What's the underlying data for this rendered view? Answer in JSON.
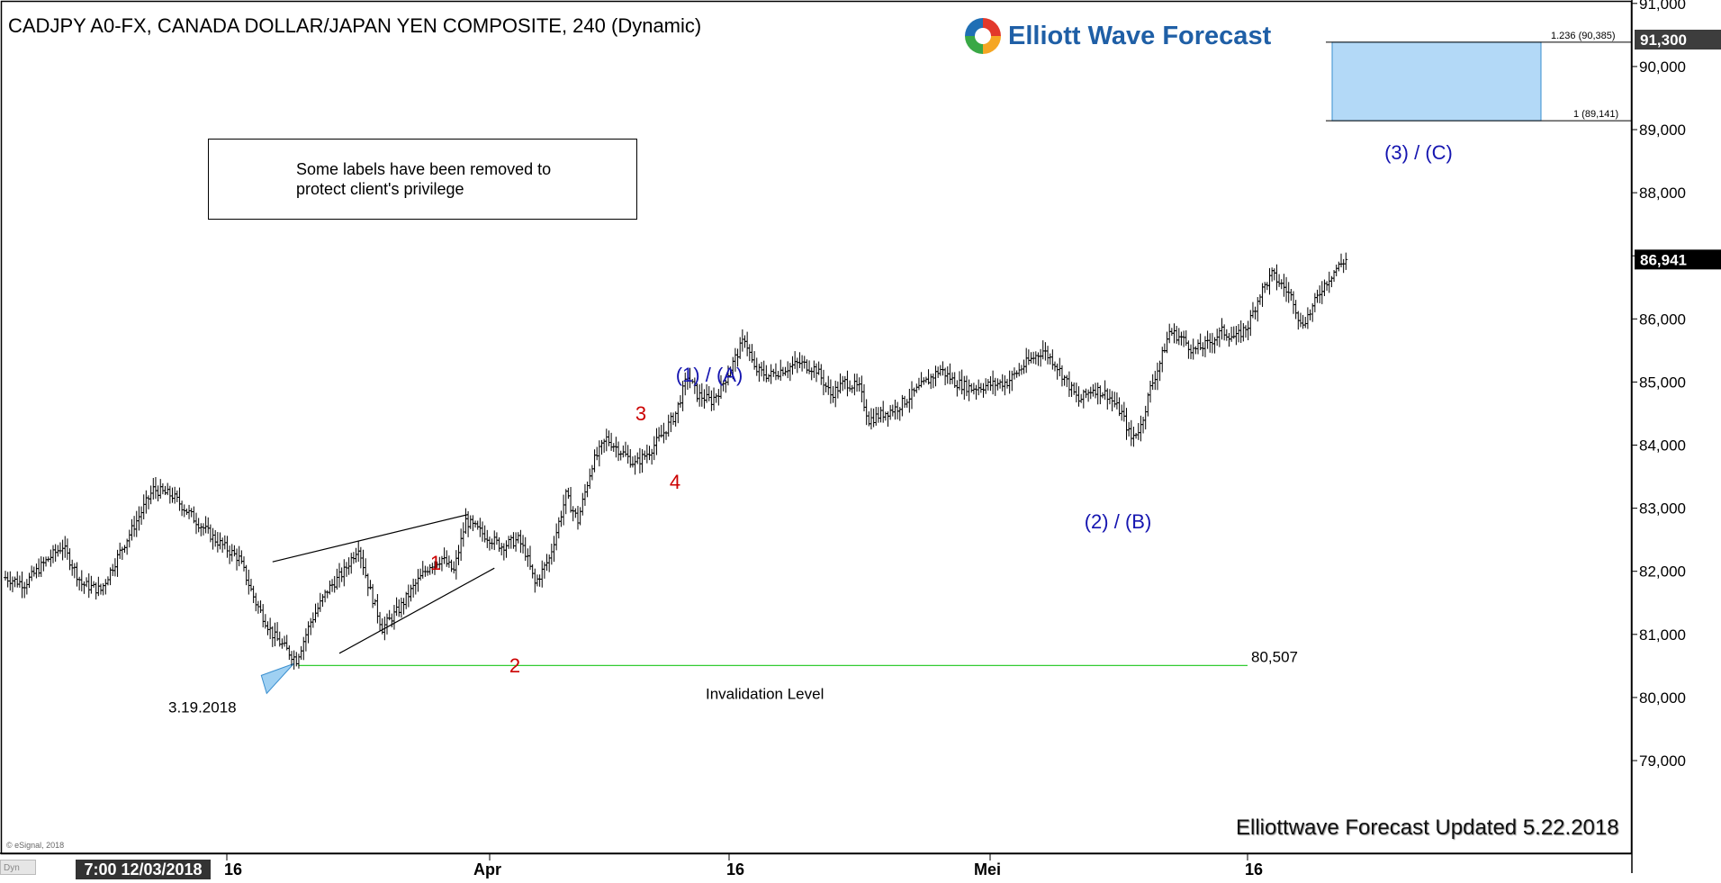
{
  "header": {
    "title": "CADJPY A0-FX, CANADA DOLLAR/JAPAN YEN COMPOSITE, 240 (Dynamic)",
    "logo_text": "Elliott Wave Forecast"
  },
  "note": {
    "text": "Some labels have been removed to\nprotect client's privilege"
  },
  "footer": {
    "dyn_label": "Dyn",
    "time_badge": "7:00 12/03/2018",
    "copyright": "© eSignal, 2018",
    "updated": "Elliottwave Forecast Updated 5.22.2018"
  },
  "chart_data": {
    "type": "ohlc",
    "symbol": "CADJPY",
    "timeframe": "240",
    "ylim": [
      78500,
      91800
    ],
    "y_ticks": [
      "79,000",
      "80,000",
      "81,000",
      "82,000",
      "83,000",
      "84,000",
      "85,000",
      "86,000",
      "87,000",
      "88,000",
      "89,000",
      "90,000",
      "91,000"
    ],
    "x_tick_labels": [
      "16",
      "Apr",
      "16",
      "Mei",
      "16"
    ],
    "price_flags": {
      "top": "91,300",
      "last": "86,941"
    },
    "price_flag_values": {
      "top": 91300,
      "last": 86941
    },
    "price_anchors": [
      [
        0,
        81900
      ],
      [
        8,
        81800
      ],
      [
        18,
        82200
      ],
      [
        24,
        82400
      ],
      [
        32,
        81800
      ],
      [
        40,
        81700
      ],
      [
        48,
        82300
      ],
      [
        55,
        82800
      ],
      [
        62,
        83300
      ],
      [
        70,
        83200
      ],
      [
        75,
        83000
      ],
      [
        80,
        82800
      ],
      [
        88,
        82500
      ],
      [
        98,
        82200
      ],
      [
        105,
        81500
      ],
      [
        112,
        81000
      ],
      [
        118,
        80750
      ],
      [
        122,
        80600
      ],
      [
        128,
        81200
      ],
      [
        135,
        81700
      ],
      [
        142,
        82000
      ],
      [
        148,
        82400
      ],
      [
        152,
        81800
      ],
      [
        158,
        81100
      ],
      [
        165,
        81400
      ],
      [
        172,
        81800
      ],
      [
        178,
        82100
      ],
      [
        183,
        82200
      ],
      [
        188,
        82000
      ],
      [
        193,
        82800
      ],
      [
        200,
        82600
      ],
      [
        208,
        82400
      ],
      [
        215,
        82500
      ],
      [
        218,
        82300
      ],
      [
        222,
        81800
      ],
      [
        228,
        82200
      ],
      [
        235,
        83200
      ],
      [
        240,
        82800
      ],
      [
        246,
        83700
      ],
      [
        252,
        84100
      ],
      [
        258,
        83900
      ],
      [
        264,
        83700
      ],
      [
        270,
        83900
      ],
      [
        276,
        84200
      ],
      [
        281,
        84500
      ],
      [
        286,
        85100
      ],
      [
        290,
        84800
      ],
      [
        296,
        84700
      ],
      [
        300,
        84900
      ],
      [
        305,
        85300
      ],
      [
        310,
        85700
      ],
      [
        314,
        85200
      ],
      [
        320,
        85100
      ],
      [
        326,
        85200
      ],
      [
        333,
        85300
      ],
      [
        340,
        85200
      ],
      [
        346,
        84800
      ],
      [
        352,
        85000
      ],
      [
        358,
        84900
      ],
      [
        362,
        84400
      ],
      [
        368,
        84500
      ],
      [
        374,
        84600
      ],
      [
        380,
        84800
      ],
      [
        386,
        85000
      ],
      [
        392,
        85200
      ],
      [
        398,
        85000
      ],
      [
        405,
        84900
      ],
      [
        412,
        84950
      ],
      [
        420,
        85000
      ],
      [
        428,
        85300
      ],
      [
        435,
        85500
      ],
      [
        440,
        85300
      ],
      [
        445,
        85000
      ],
      [
        450,
        84700
      ],
      [
        456,
        84900
      ],
      [
        462,
        84800
      ],
      [
        468,
        84500
      ],
      [
        472,
        84100
      ],
      [
        476,
        84300
      ],
      [
        480,
        84900
      ],
      [
        484,
        85300
      ],
      [
        488,
        85800
      ],
      [
        493,
        85700
      ],
      [
        498,
        85500
      ],
      [
        504,
        85600
      ],
      [
        510,
        85800
      ],
      [
        516,
        85700
      ],
      [
        521,
        85900
      ],
      [
        526,
        86400
      ],
      [
        531,
        86700
      ],
      [
        536,
        86500
      ],
      [
        540,
        86300
      ],
      [
        543,
        85900
      ],
      [
        547,
        86100
      ],
      [
        552,
        86500
      ],
      [
        558,
        86800
      ],
      [
        562,
        86941
      ]
    ],
    "wave_labels": [
      {
        "text": "1",
        "color": "#cc0000",
        "x": 193,
        "y": 82950
      },
      {
        "text": "2",
        "color": "#cc0000",
        "x": 222,
        "y": 81100
      },
      {
        "text": "3",
        "color": "#cc0000",
        "x": 283,
        "y": 85350
      },
      {
        "text": "4",
        "color": "#cc0000",
        "x": 299,
        "y": 84200
      },
      {
        "text": "(1) / (A)",
        "color": "#1515b0",
        "x": 309,
        "y": 85950
      },
      {
        "text": "(2) / (B)",
        "color": "#1515b0",
        "x": 474,
        "y": 83800
      },
      {
        "text": "(3) / (C)",
        "color": "#1515b0",
        "x": 601,
        "y": 89600
      }
    ],
    "target_box": {
      "y_low": 89141,
      "y_high": 90385,
      "x_start": 564,
      "x_end": 603,
      "label_low": "1 (89,141)",
      "label_high": "1.236 (90,385)",
      "fill": "#b3d9f7"
    },
    "invalidation": {
      "value": 80507,
      "value_label": "80,507",
      "label": "Invalidation Level",
      "color": "#33cc33"
    },
    "date_label": "3.19.2018",
    "channel_lines": [
      {
        "from": [
          112,
          82150
        ],
        "to": [
          194,
          82900
        ]
      },
      {
        "from": [
          140,
          80700
        ],
        "to": [
          205,
          82050
        ]
      }
    ],
    "colors": {
      "bars": "#000000",
      "grid_axis": "#000000"
    }
  }
}
